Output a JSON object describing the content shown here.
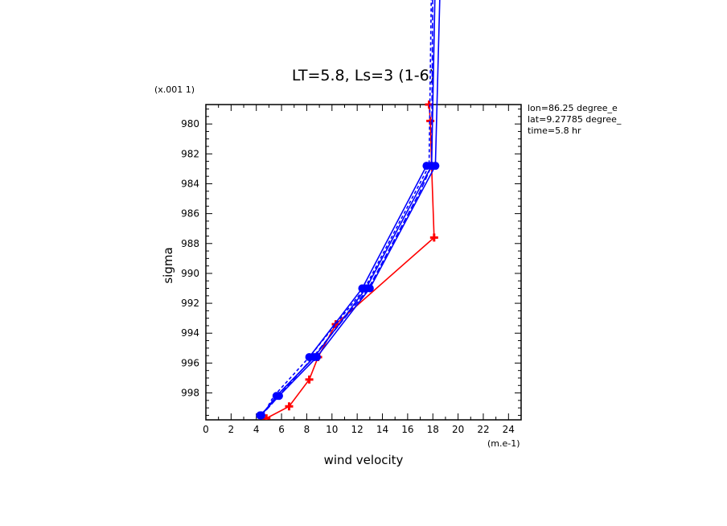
{
  "chart_data": {
    "type": "line",
    "title": "LT=5.8, Ls=3 (1-6)",
    "xlabel": "wind velocity",
    "ylabel": "sigma",
    "x_unit": "(m.e-1)",
    "y_unit": "(x.001 1)",
    "xlim": [
      0,
      25
    ],
    "ylim": [
      999.8,
      978.7
    ],
    "x_ticks": [
      "0",
      "2",
      "4",
      "6",
      "8",
      "10",
      "12",
      "14",
      "16",
      "18",
      "20",
      "22",
      "24"
    ],
    "y_ticks": [
      "980",
      "982",
      "984",
      "986",
      "988",
      "990",
      "992",
      "994",
      "996",
      "998"
    ],
    "info": [
      "lon=86.25 degree_e",
      "lat=9.27785 degree_",
      "time=5.8 hr"
    ],
    "series": [
      {
        "color": "#ff0000",
        "style": "solid",
        "marker": "plus",
        "points": [
          [
            17.7,
            978.7
          ],
          [
            17.8,
            979.8
          ],
          [
            17.9,
            982.8
          ],
          [
            18.1,
            987.6
          ],
          [
            10.3,
            993.4
          ],
          [
            8.9,
            995.6
          ],
          [
            8.2,
            997.1
          ],
          [
            6.6,
            998.9
          ],
          [
            4.8,
            999.7
          ]
        ]
      },
      {
        "color": "#0000ff",
        "style": "solid",
        "marker": "dot",
        "points": [
          [
            18.6,
            970.0
          ],
          [
            18.2,
            982.8
          ],
          [
            13.0,
            991.0
          ],
          [
            8.8,
            995.6
          ],
          [
            5.8,
            998.2
          ],
          [
            4.3,
            999.5
          ]
        ]
      },
      {
        "color": "#0000ff",
        "style": "solid",
        "marker": "dot",
        "points": [
          [
            18.2,
            970.0
          ],
          [
            17.9,
            982.8
          ],
          [
            12.7,
            991.0
          ],
          [
            8.6,
            995.6
          ],
          [
            5.6,
            998.2
          ],
          [
            4.4,
            999.5
          ]
        ]
      },
      {
        "color": "#0000ff",
        "style": "solid",
        "marker": "dot",
        "points": [
          [
            17.5,
            982.8
          ],
          [
            12.4,
            991.0
          ],
          [
            8.2,
            995.6
          ]
        ]
      },
      {
        "color": "#0000ff",
        "style": "dashed",
        "marker": "none",
        "points": [
          [
            17.9,
            970.0
          ],
          [
            17.7,
            982.8
          ],
          [
            12.6,
            991.0
          ],
          [
            8.2,
            995.6
          ],
          [
            5.4,
            998.2
          ],
          [
            4.5,
            999.5
          ]
        ]
      },
      {
        "color": "#0000ff",
        "style": "dashed",
        "marker": "none",
        "points": [
          [
            18.0,
            970.0
          ],
          [
            17.9,
            982.8
          ],
          [
            17.0,
            984.5
          ],
          [
            12.9,
            991.0
          ],
          [
            8.5,
            995.6
          ],
          [
            5.8,
            998.2
          ],
          [
            4.4,
            999.5
          ]
        ]
      }
    ]
  }
}
